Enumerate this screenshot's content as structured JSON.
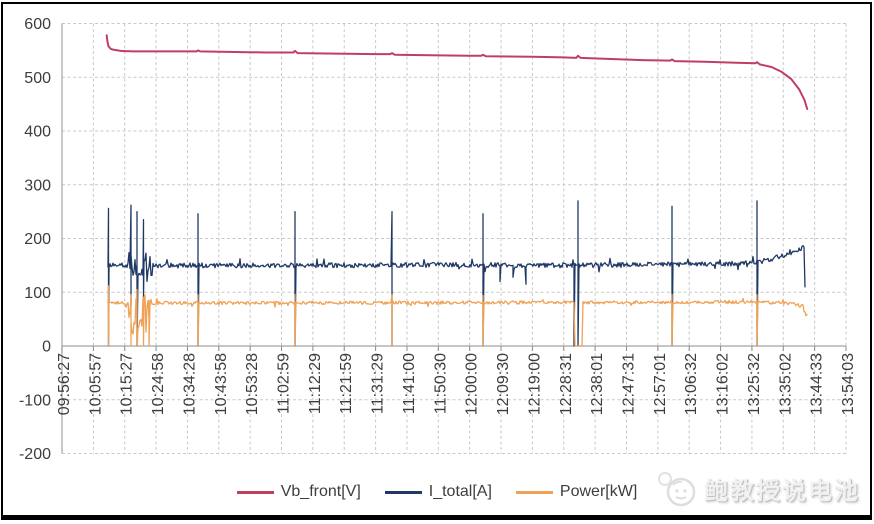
{
  "watermark": {
    "text": "鲍教授说电池"
  },
  "legend": [
    {
      "label": "Vb_front[V]",
      "color": "#C13E63"
    },
    {
      "label": "I_total[A]",
      "color": "#1F3864"
    },
    {
      "label": "Power[kW]",
      "color": "#F0A155"
    }
  ],
  "chart_data": {
    "type": "line",
    "title": "",
    "xlabel": "",
    "ylabel": "",
    "grid": "dashed horizontal and vertical gridlines",
    "legend_position": "bottom-center",
    "ylim": [
      -200,
      600
    ],
    "y_ticks": [
      600,
      500,
      400,
      300,
      200,
      100,
      0,
      -100,
      -200
    ],
    "x_tick_labels": [
      "09:56:27",
      "10:05:57",
      "10:15:27",
      "10:24:58",
      "10:34:28",
      "10:43:58",
      "10:53:28",
      "11:02:59",
      "11:12:29",
      "11:21:59",
      "11:31:29",
      "11:41:00",
      "11:50:30",
      "12:00:00",
      "12:09:30",
      "12:19:00",
      "12:28:31",
      "12:38:01",
      "12:47:31",
      "12:57:01",
      "13:06:32",
      "13:16:02",
      "13:25:32",
      "13:35:02",
      "13:44:33",
      "13:54:03"
    ],
    "x_axis_note": "x positions of series data are fractions 0..1 across the full tick span 09:56:27 to 13:54:03; data runs from about 10:10 to about 13:41",
    "colors": {
      "vb_front": "#C13E63",
      "i_total": "#1F3864",
      "power": "#F0A155"
    },
    "series": [
      {
        "name": "Vb_front[V]",
        "color": "#C13E63",
        "style": "smooth",
        "points": [
          [
            0.057,
            578
          ],
          [
            0.0578,
            568
          ],
          [
            0.0592,
            558
          ],
          [
            0.062,
            553
          ],
          [
            0.066,
            551
          ],
          [
            0.075,
            549
          ],
          [
            0.09,
            548
          ],
          [
            0.11,
            548
          ],
          [
            0.14,
            548
          ],
          [
            0.1715,
            548
          ],
          [
            0.1735,
            550
          ],
          [
            0.176,
            548
          ],
          [
            0.22,
            547
          ],
          [
            0.26,
            546
          ],
          [
            0.295,
            546
          ],
          [
            0.2972,
            549
          ],
          [
            0.3005,
            545
          ],
          [
            0.35,
            544
          ],
          [
            0.4,
            543
          ],
          [
            0.4185,
            543
          ],
          [
            0.4209,
            545
          ],
          [
            0.4245,
            542
          ],
          [
            0.47,
            541
          ],
          [
            0.52,
            540
          ],
          [
            0.5348,
            540
          ],
          [
            0.537,
            542
          ],
          [
            0.5405,
            539
          ],
          [
            0.6,
            538
          ],
          [
            0.64,
            537
          ],
          [
            0.6558,
            536
          ],
          [
            0.6582,
            540
          ],
          [
            0.6615,
            536
          ],
          [
            0.7,
            534
          ],
          [
            0.74,
            532
          ],
          [
            0.7758,
            531
          ],
          [
            0.7781,
            533
          ],
          [
            0.7815,
            530
          ],
          [
            0.82,
            529
          ],
          [
            0.86,
            527
          ],
          [
            0.8843,
            526
          ],
          [
            0.8865,
            528
          ],
          [
            0.89,
            524
          ],
          [
            0.905,
            519
          ],
          [
            0.918,
            510
          ],
          [
            0.93,
            497
          ],
          [
            0.94,
            478
          ],
          [
            0.947,
            458
          ],
          [
            0.9505,
            441
          ]
        ]
      },
      {
        "name": "I_total[A]",
        "color": "#1F3864",
        "style": "noisy",
        "range": [
          0.0593,
          0.9477
        ],
        "baseline": [
          [
            0.0593,
            150
          ],
          [
            0.3,
            150
          ],
          [
            0.5,
            151
          ],
          [
            0.66,
            150
          ],
          [
            0.78,
            152
          ],
          [
            0.85,
            153
          ],
          [
            0.88,
            155
          ],
          [
            0.9,
            160
          ],
          [
            0.92,
            168
          ],
          [
            0.935,
            177
          ],
          [
            0.9477,
            185
          ]
        ],
        "noise": 4.5,
        "spike_chance": 0.05,
        "zones": [
          {
            "from": 0.0842,
            "to": 0.1148,
            "noise": 26
          }
        ],
        "events": [
          {
            "at": 0.0593,
            "low": 0,
            "high": 256
          },
          {
            "at": 0.088,
            "low": 75,
            "high": 262
          },
          {
            "at": 0.0957,
            "low": 0,
            "high": 250
          },
          {
            "at": 0.104,
            "low": 90,
            "high": 235
          },
          {
            "at": 0.1735,
            "low": 0,
            "high": 246
          },
          {
            "at": 0.2972,
            "low": 0,
            "high": 250
          },
          {
            "at": 0.4209,
            "low": 0,
            "high": 250
          },
          {
            "at": 0.537,
            "low": 0,
            "high": 246
          },
          {
            "at": 0.5587,
            "low": 120
          },
          {
            "at": 0.5753,
            "low": 128
          },
          {
            "at": 0.5918,
            "low": 115
          },
          {
            "at": 0.6531,
            "low": 0
          },
          {
            "at": 0.6582,
            "low": 0,
            "high": 270
          },
          {
            "at": 0.7781,
            "low": 0,
            "high": 260
          },
          {
            "at": 0.8865,
            "low": 0,
            "high": 270
          },
          {
            "at": 0.9477,
            "low": 110,
            "terminal": true
          }
        ]
      },
      {
        "name": "Power[kW]",
        "color": "#F0A155",
        "style": "noisy",
        "range": [
          0.0593,
          0.9505
        ],
        "baseline": [
          [
            0.0593,
            80
          ],
          [
            0.3,
            80
          ],
          [
            0.6,
            81
          ],
          [
            0.88,
            82
          ],
          [
            0.92,
            80
          ],
          [
            0.935,
            78
          ],
          [
            0.944,
            74
          ],
          [
            0.948,
            62
          ],
          [
            0.9505,
            55
          ]
        ],
        "noise": 3,
        "spike_chance": 0.04,
        "zones": [
          {
            "from": 0.0842,
            "to": 0.1148,
            "noise": 40,
            "baseline": 58,
            "clamp": [
              0,
              110
            ]
          }
        ],
        "flat_zero": [
          {
            "from": 0.6531,
            "to": 0.6633
          }
        ],
        "events": [
          {
            "at": 0.0593,
            "low": 0,
            "high": 112
          },
          {
            "at": 0.088,
            "low": 0,
            "high": 95
          },
          {
            "at": 0.0957,
            "low": 0,
            "high": 105
          },
          {
            "at": 0.104,
            "low": 0,
            "high": 90
          },
          {
            "at": 0.111,
            "low": 0,
            "high": 85
          },
          {
            "at": 0.1735,
            "low": 0,
            "high": 95
          },
          {
            "at": 0.2972,
            "low": 0,
            "high": 96
          },
          {
            "at": 0.4209,
            "low": 0,
            "high": 95
          },
          {
            "at": 0.537,
            "low": 0,
            "high": 94
          },
          {
            "at": 0.7781,
            "low": 0,
            "high": 96
          },
          {
            "at": 0.8865,
            "low": 0,
            "high": 95
          }
        ]
      }
    ]
  }
}
